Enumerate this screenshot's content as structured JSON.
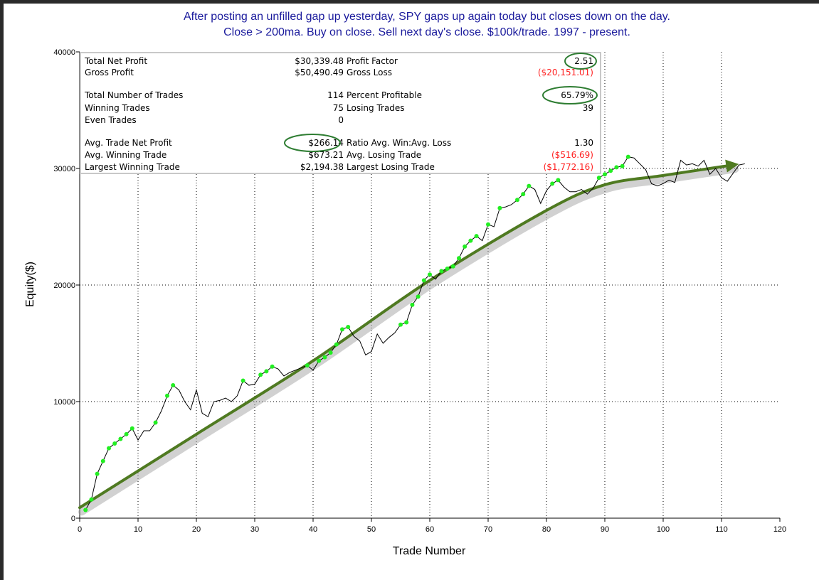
{
  "colors": {
    "title": "#1a1a9c",
    "equity_line": "#000000",
    "win_point": "#22ee22",
    "trend_arrow": "#4f7a21",
    "highlight_oval": "#2e7d32",
    "negative": "#ff2020"
  },
  "chart_data": {
    "type": "line",
    "title": "After posting an unfilled gap up yesterday, SPY gaps up again today but closes down on the day.",
    "subtitle": "Close > 200ma. Buy on close. Sell next day's close. $100k/trade. 1997 - present.",
    "xlabel": "Trade Number",
    "ylabel": "Equity($)",
    "xlim": [
      0,
      120
    ],
    "ylim": [
      0,
      40000
    ],
    "x_ticks": [
      "0",
      "10",
      "20",
      "30",
      "40",
      "50",
      "60",
      "70",
      "80",
      "90",
      "100",
      "110",
      "120"
    ],
    "y_ticks": [
      "0",
      "10000",
      "20000",
      "30000",
      "40000"
    ],
    "grid": "dotted",
    "series": [
      {
        "values": [
          [
            1,
            700
          ],
          [
            2,
            1600
          ],
          [
            3,
            3800
          ],
          [
            4,
            4900
          ],
          [
            5,
            6000
          ],
          [
            6,
            6400
          ],
          [
            7,
            6800
          ],
          [
            8,
            7200
          ],
          [
            9,
            7700
          ],
          [
            10,
            6700
          ],
          [
            11,
            7500
          ],
          [
            12,
            7500
          ],
          [
            13,
            8200
          ],
          [
            14,
            9200
          ],
          [
            15,
            10500
          ],
          [
            16,
            11400
          ],
          [
            17,
            11000
          ],
          [
            18,
            10000
          ],
          [
            19,
            9300
          ],
          [
            20,
            11000
          ],
          [
            21,
            9000
          ],
          [
            22,
            8700
          ],
          [
            23,
            10000
          ],
          [
            24,
            10100
          ],
          [
            25,
            10300
          ],
          [
            26,
            10000
          ],
          [
            27,
            10500
          ],
          [
            28,
            11800
          ],
          [
            29,
            11400
          ],
          [
            30,
            11500
          ],
          [
            31,
            12300
          ],
          [
            32,
            12600
          ],
          [
            33,
            13000
          ],
          [
            34,
            12800
          ],
          [
            35,
            12200
          ],
          [
            36,
            12500
          ],
          [
            37,
            12700
          ],
          [
            38,
            12900
          ],
          [
            39,
            13100
          ],
          [
            40,
            12700
          ],
          [
            41,
            13500
          ],
          [
            42,
            13800
          ],
          [
            43,
            14200
          ],
          [
            44,
            14900
          ],
          [
            45,
            16200
          ],
          [
            46,
            16400
          ],
          [
            47,
            15600
          ],
          [
            48,
            15200
          ],
          [
            49,
            14000
          ],
          [
            50,
            14300
          ],
          [
            51,
            15800
          ],
          [
            52,
            15000
          ],
          [
            53,
            15500
          ],
          [
            54,
            15900
          ],
          [
            55,
            16600
          ],
          [
            56,
            16800
          ],
          [
            57,
            18300
          ],
          [
            58,
            19000
          ],
          [
            59,
            20400
          ],
          [
            60,
            20900
          ],
          [
            61,
            20500
          ],
          [
            62,
            21200
          ],
          [
            63,
            21400
          ],
          [
            64,
            21600
          ],
          [
            65,
            22300
          ],
          [
            66,
            23300
          ],
          [
            67,
            23800
          ],
          [
            68,
            24200
          ],
          [
            69,
            23800
          ],
          [
            70,
            25200
          ],
          [
            71,
            25000
          ],
          [
            72,
            26600
          ],
          [
            73,
            26700
          ],
          [
            74,
            26900
          ],
          [
            75,
            27300
          ],
          [
            76,
            27800
          ],
          [
            77,
            28500
          ],
          [
            78,
            28200
          ],
          [
            79,
            27000
          ],
          [
            80,
            28100
          ],
          [
            81,
            28700
          ],
          [
            82,
            29000
          ],
          [
            83,
            28400
          ],
          [
            84,
            28000
          ],
          [
            85,
            28000
          ],
          [
            86,
            28200
          ],
          [
            87,
            27800
          ],
          [
            88,
            28300
          ],
          [
            89,
            29200
          ],
          [
            90,
            29500
          ],
          [
            91,
            29800
          ],
          [
            92,
            30100
          ],
          [
            93,
            30200
          ],
          [
            94,
            31000
          ],
          [
            95,
            30900
          ],
          [
            96,
            30400
          ],
          [
            97,
            29900
          ],
          [
            98,
            28700
          ],
          [
            99,
            28500
          ],
          [
            100,
            28700
          ],
          [
            101,
            29000
          ],
          [
            102,
            28800
          ],
          [
            103,
            30700
          ],
          [
            104,
            30300
          ],
          [
            105,
            30400
          ],
          [
            106,
            30200
          ],
          [
            107,
            30700
          ],
          [
            108,
            29500
          ],
          [
            109,
            30000
          ],
          [
            110,
            29200
          ],
          [
            111,
            28900
          ],
          [
            112,
            29600
          ],
          [
            113,
            30300
          ],
          [
            114,
            30400
          ]
        ]
      }
    ],
    "winning_trade_markers": [
      [
        1,
        700
      ],
      [
        2,
        1600
      ],
      [
        3,
        3800
      ],
      [
        4,
        4900
      ],
      [
        5,
        6000
      ],
      [
        6,
        6400
      ],
      [
        7,
        6800
      ],
      [
        8,
        7200
      ],
      [
        9,
        7700
      ],
      [
        13,
        8200
      ],
      [
        15,
        10500
      ],
      [
        16,
        11400
      ],
      [
        28,
        11800
      ],
      [
        31,
        12300
      ],
      [
        32,
        12600
      ],
      [
        33,
        13000
      ],
      [
        39,
        13100
      ],
      [
        41,
        13500
      ],
      [
        42,
        13800
      ],
      [
        43,
        14200
      ],
      [
        44,
        14900
      ],
      [
        45,
        16200
      ],
      [
        46,
        16400
      ],
      [
        55,
        16600
      ],
      [
        56,
        16800
      ],
      [
        57,
        18300
      ],
      [
        58,
        19000
      ],
      [
        59,
        20400
      ],
      [
        60,
        20900
      ],
      [
        62,
        21200
      ],
      [
        63,
        21400
      ],
      [
        64,
        21600
      ],
      [
        65,
        22300
      ],
      [
        66,
        23300
      ],
      [
        67,
        23800
      ],
      [
        68,
        24200
      ],
      [
        70,
        25200
      ],
      [
        72,
        26600
      ],
      [
        75,
        27300
      ],
      [
        76,
        27800
      ],
      [
        77,
        28500
      ],
      [
        81,
        28700
      ],
      [
        82,
        29000
      ],
      [
        89,
        29200
      ],
      [
        90,
        29500
      ],
      [
        91,
        29800
      ],
      [
        92,
        30100
      ],
      [
        93,
        30200
      ],
      [
        94,
        31000
      ]
    ],
    "trend_arrow": [
      [
        0,
        900
      ],
      [
        20,
        7200
      ],
      [
        40,
        13500
      ],
      [
        60,
        20400
      ],
      [
        80,
        26400
      ],
      [
        90,
        28600
      ],
      [
        100,
        29400
      ],
      [
        112,
        30300
      ]
    ],
    "reference_line_y": 30000,
    "reference_line_x_start": 60,
    "stats": {
      "rows": [
        {
          "l_label": "Total Net Profit",
          "l_value": "$30,339.48",
          "l_neg": false,
          "r_label": "Profit Factor",
          "r_value": "2.51",
          "r_neg": false
        },
        {
          "l_label": "Gross Profit",
          "l_value": "$50,490.49",
          "l_neg": false,
          "r_label": "Gross Loss",
          "r_value": "($20,151.01)",
          "r_neg": true
        },
        {
          "l_label": "Total Number of Trades",
          "l_value": "114",
          "l_neg": false,
          "r_label": "Percent Profitable",
          "r_value": "65.79%",
          "r_neg": false
        },
        {
          "l_label": "Winning Trades",
          "l_value": "75",
          "l_neg": false,
          "r_label": "Losing Trades",
          "r_value": "39",
          "r_neg": false
        },
        {
          "l_label": "Even Trades",
          "l_value": "0",
          "l_neg": false,
          "r_label": "",
          "r_value": "",
          "r_neg": false
        },
        {
          "l_label": "Avg. Trade Net Profit",
          "l_value": "$266.14",
          "l_neg": false,
          "r_label": "Ratio Avg. Win:Avg. Loss",
          "r_value": "1.30",
          "r_neg": false
        },
        {
          "l_label": "Avg. Winning Trade",
          "l_value": "$673.21",
          "l_neg": false,
          "r_label": "Avg. Losing Trade",
          "r_value": "($516.69)",
          "r_neg": true
        },
        {
          "l_label": "Largest Winning Trade",
          "l_value": "$2,194.38",
          "l_neg": false,
          "r_label": "Largest Losing Trade",
          "r_value": "($1,772.16)",
          "r_neg": true
        }
      ],
      "highlighted": [
        "Profit Factor",
        "Percent Profitable",
        "Avg. Trade Net Profit"
      ]
    }
  }
}
